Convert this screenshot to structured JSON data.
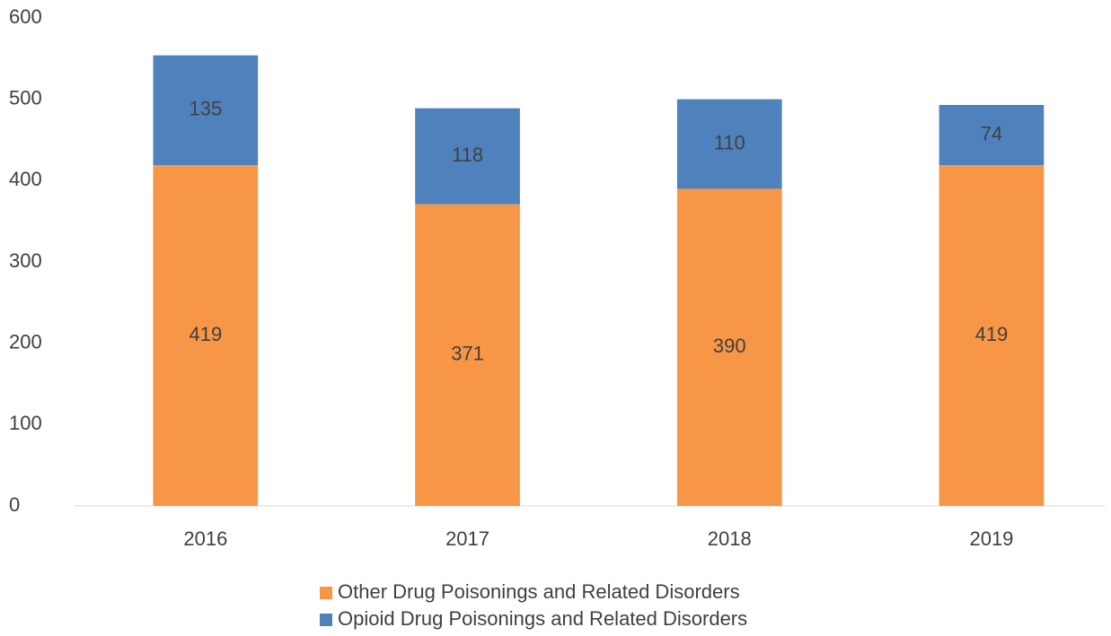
{
  "chart_data": {
    "type": "stacked_bar",
    "categories": [
      "2016",
      "2017",
      "2018",
      "2019"
    ],
    "series": [
      {
        "name": "Other Drug Poisonings and Related Disorders",
        "color": "#f79646",
        "values": [
          419,
          371,
          390,
          419
        ]
      },
      {
        "name": "Opioid Drug Poisonings and Related Disorders",
        "color": "#4f81bd",
        "values": [
          135,
          118,
          110,
          74
        ]
      }
    ],
    "ylim": [
      0,
      600
    ],
    "yticks": [
      0,
      100,
      200,
      300,
      400,
      500,
      600
    ],
    "grid": false
  }
}
